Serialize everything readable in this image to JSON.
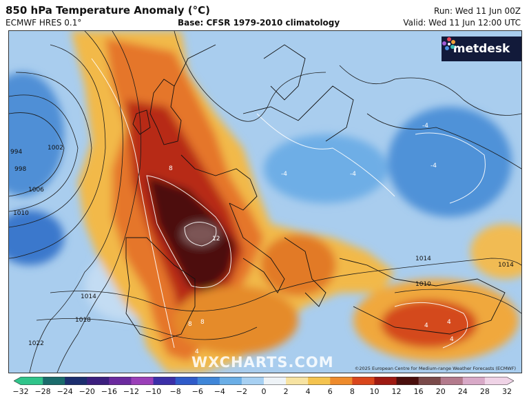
{
  "header": {
    "title": "850 hPa Temperature Anomaly (°C)",
    "model": "ECMWF HRES 0.1°",
    "base": "Base: CFSR 1979-2010 climatology",
    "run": "Run: Wed 11 Jun 00Z",
    "valid": "Valid: Wed 11 Jun 12:00 UTC"
  },
  "branding": {
    "logo_text": "metdesk",
    "logo_icon": "metdesk-flower-icon",
    "watermark": "WXCHARTS.COM",
    "copyright": "©2025 European Centre for Medium-range Weather Forecasts (ECMWF)"
  },
  "map": {
    "isobar_labels": [
      "994",
      "998",
      "1002",
      "1006",
      "1010",
      "1014",
      "1018",
      "1022",
      "1014",
      "1010",
      "1014"
    ],
    "anomaly_labels": [
      "12",
      "8",
      "8",
      "8",
      "4",
      "-4",
      "-4",
      "-4",
      "4",
      "4",
      "4",
      "-4"
    ]
  },
  "colorbar": {
    "ticks": [
      "−32",
      "−28",
      "−24",
      "−20",
      "−16",
      "−12",
      "−10",
      "−8",
      "−6",
      "−4",
      "−2",
      "0",
      "2",
      "4",
      "6",
      "8",
      "10",
      "12",
      "16",
      "20",
      "24",
      "28",
      "32"
    ],
    "colors": [
      "#2fc48a",
      "#1a6b6b",
      "#1c2e6e",
      "#3c1f7e",
      "#6b2a9e",
      "#9a3fb8",
      "#3b2fa8",
      "#2f5bc9",
      "#3f86d8",
      "#6aaee6",
      "#a7d0f2",
      "#eef3f7",
      "#f7e3a2",
      "#f4c34f",
      "#ee8b2c",
      "#d9461c",
      "#9e1a12",
      "#4a0f0d",
      "#7a4a4a",
      "#b37a8c",
      "#d8a9c7",
      "#efd3e6"
    ]
  }
}
